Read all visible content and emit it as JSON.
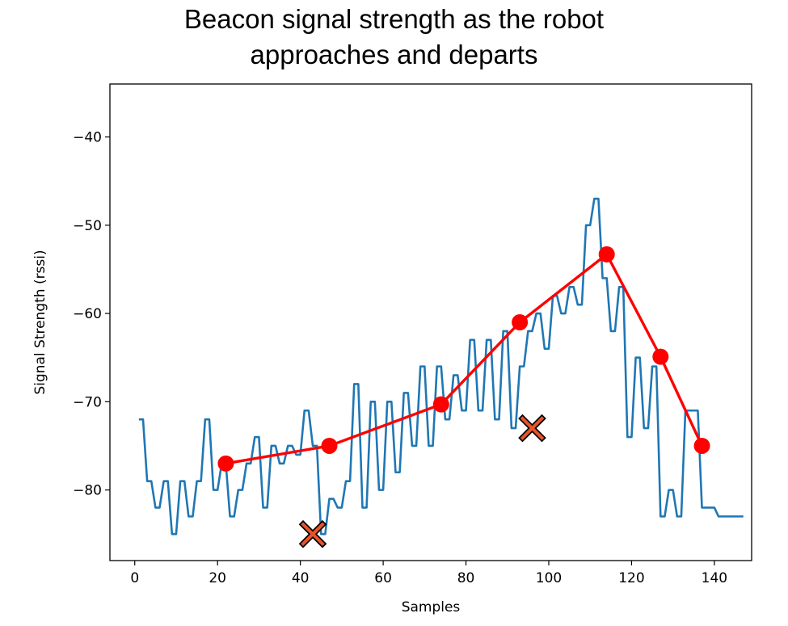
{
  "chart_data": {
    "type": "line",
    "title_lines": [
      "Beacon signal strength as the robot",
      "approaches and departs"
    ],
    "xlabel": "Samples",
    "ylabel": "Signal Strength (rssi)",
    "xlim": [
      -6,
      149
    ],
    "ylim": [
      -88,
      -34
    ],
    "xticks": [
      0,
      20,
      40,
      60,
      80,
      100,
      120,
      140
    ],
    "yticks": [
      -80,
      -70,
      -60,
      -50,
      -40
    ],
    "grid": false,
    "colors": {
      "raw": "#1f77b4",
      "smoothed": "#ff0000",
      "minima_fill": "#e8542a",
      "minima_edge": "#000000"
    },
    "series": [
      {
        "key": "raw",
        "style": "line",
        "x": [
          1,
          2,
          3,
          4,
          5,
          6,
          7,
          8,
          9,
          10,
          11,
          12,
          13,
          14,
          15,
          16,
          17,
          18,
          19,
          20,
          21,
          22,
          23,
          24,
          25,
          26,
          27,
          28,
          29,
          30,
          31,
          32,
          33,
          34,
          35,
          36,
          37,
          38,
          39,
          40,
          41,
          42,
          43,
          44,
          45,
          46,
          47,
          48,
          49,
          50,
          51,
          52,
          53,
          54,
          55,
          56,
          57,
          58,
          59,
          60,
          61,
          62,
          63,
          64,
          65,
          66,
          67,
          68,
          69,
          70,
          71,
          72,
          73,
          74,
          75,
          76,
          77,
          78,
          79,
          80,
          81,
          82,
          83,
          84,
          85,
          86,
          87,
          88,
          89,
          90,
          91,
          92,
          93,
          94,
          95,
          96,
          97,
          98,
          99,
          100,
          101,
          102,
          103,
          104,
          105,
          106,
          107,
          108,
          109,
          110,
          111,
          112,
          113,
          114,
          115,
          116,
          117,
          118,
          119,
          120,
          121,
          122,
          123,
          124,
          125,
          126,
          127,
          128,
          129,
          130,
          131,
          132,
          133,
          134,
          135,
          136,
          137,
          138,
          139,
          140,
          141,
          142,
          143,
          144,
          145,
          146,
          147
        ],
        "y": [
          -72,
          -72,
          -79,
          -79,
          -82,
          -82,
          -79,
          -79,
          -85,
          -85,
          -79,
          -79,
          -83,
          -83,
          -79,
          -79,
          -72,
          -72,
          -80,
          -80,
          -77,
          -77,
          -83,
          -83,
          -80,
          -80,
          -77,
          -77,
          -74,
          -74,
          -82,
          -82,
          -75,
          -75,
          -77,
          -77,
          -75,
          -75,
          -76,
          -76,
          -71,
          -71,
          -75,
          -75,
          -85,
          -85,
          -81,
          -81,
          -82,
          -82,
          -79,
          -79,
          -68,
          -68,
          -82,
          -82,
          -70,
          -70,
          -80,
          -80,
          -70,
          -70,
          -78,
          -78,
          -69,
          -69,
          -75,
          -75,
          -66,
          -66,
          -75,
          -75,
          -66,
          -66,
          -72,
          -72,
          -67,
          -67,
          -71,
          -71,
          -63,
          -63,
          -71,
          -71,
          -63,
          -63,
          -72,
          -72,
          -62,
          -62,
          -73,
          -73,
          -66,
          -66,
          -62,
          -62,
          -60,
          -60,
          -64,
          -64,
          -58,
          -58,
          -60,
          -60,
          -57,
          -57,
          -59,
          -59,
          -50,
          -50,
          -47,
          -47,
          -56,
          -56,
          -62,
          -62,
          -57,
          -57,
          -74,
          -74,
          -65,
          -65,
          -73,
          -73,
          -66,
          -66,
          -83,
          -83,
          -80,
          -80,
          -83,
          -83,
          -71,
          -71,
          -71,
          -71,
          -82,
          -82,
          -82,
          -82,
          -83,
          -83,
          -83,
          -83,
          -83,
          -83,
          -83
        ]
      },
      {
        "key": "smoothed",
        "style": "line-markers",
        "x": [
          22,
          47,
          74,
          93,
          114,
          127,
          137
        ],
        "y": [
          -77,
          -75,
          -70.3,
          -61,
          -53.3,
          -64.9,
          -75
        ]
      },
      {
        "key": "minima",
        "style": "x-markers",
        "x": [
          43,
          96
        ],
        "y": [
          -85,
          -73
        ]
      }
    ]
  }
}
